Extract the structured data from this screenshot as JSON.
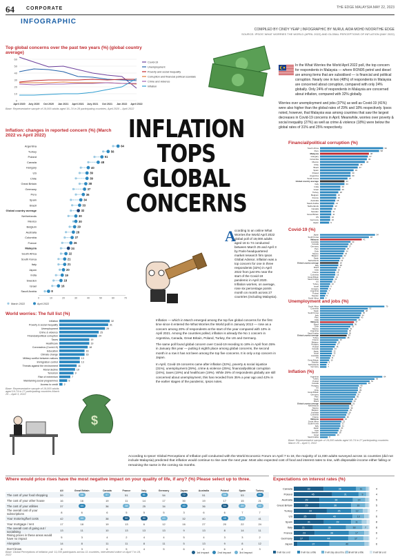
{
  "header": {
    "page": "64",
    "section": "CORPORATE",
    "kicker": "INFOGRAPHIC",
    "publication": "THE EDGE MALAYSIA MAY 22, 2023",
    "credit": "COMPILED BY CINDY YEAP | INFOGRAPHIC BY NURUL AIDA MOHD NOOR/THE EDGE",
    "source": "SOURCE: IPSOS' WHAT WORRIES THE WORLD (APRIL 2022) AND GLOBAL PERCEPTIONS OF INFLATION (MAY 2022)"
  },
  "headline": {
    "line1": "INFLATION",
    "line2": "TOPS GLOBAL",
    "line3": "CONCERNS"
  },
  "intro": {
    "text": "In the What Worries the World April 2022 poll, the top concern for respondents in Malaysia — where RON95 petrol and diesel are among items that are subsidised — is financial and political corruption. Nearly one in two (48%) of respondents in Malaysia are concerned about corruption, compared with only 24% globally. Only 24% of respondents in Malaysia are concerned about inflation, compared with 32% globally.",
    "text2": "Worries over unemployment and jobs (37%) as well as Covid-19 (41%) were also higher than the global rates of 29% and 18% respectively. Ipsos noted, however, that Malaysia was among countries that saw the largest decreases in Covid-19 concerns in April. Meanwhile, worries over poverty & social inequality (27%) as well as crime & violence (18%) were below the global rates of 31% and 25% respectively."
  },
  "article": {
    "drop_letter": "A",
    "p1": "ccording to an online What Worries the World April 2022 global poll of 19,000 adults aged 16 to 74 conducted between March 25 and April 3 by Paris-headquartered market research firm Ipsos Global Advisor, inflation was a top concern for one in three respondents (32%) in April 2022 from just 8% near the start of the Covid-19 pandemic in April 2020. Inflation worries, on average, rose six percentage points month on month across 27 countries (including Malaysia).",
    "p2": "Inflation — which in March emerged among the top five global concerns for the first time since it entered the What Worries the World poll in January 2013 — rose as a concern among 20% of respondents at the start of the year compared with 10% in April 2021. Among the countries polled, inflation is already the No 1 concern in Argentina, Canada, Great Britain, Poland, Turkey, the US and Germany.",
    "p3": "The same poll found global concern over Covid-19 receding to 18% in April from 35% in January this year — putting it eighth place among global concerns, the second month in a row it has not been among the top five concerns. It is only a top concern in Japan.",
    "p4": "In April, Covid-19 concerns came after inflation (32%), poverty & social injustice (31%), unemployment (29%), crime & violence (25%), financial/political corruption (24%), taxes (19%) and healthcare (19%). While 29% of respondents globally are still concerned about unemployment, this has receded from 35% a year ago and 42% in the earlier stages of the pandemic, Ipsos notes."
  },
  "bottom_intro": {
    "text": "According to Ipsos' Global Perceptions of Inflation poll conducted with the World Economic Forum on April 7 to 18, the majority of 11,030 adults surveyed across 11 countries (did not include Malaysia) predicted that inflation would continue to rise over the next year. Most also expected cost of food and interest rates to rise, with disposable income either falling or remaining the same in the coming six months."
  },
  "line_chart": {
    "title": "Top global concerns over the past two years (%) (global country average)",
    "note": "Base: Representative sample of 19,000 adults aged 16–74 in 28 participating countries, April 2020 – April 2022",
    "chart_data": {
      "type": "line",
      "x": [
        "April 2020",
        "July 2020",
        "Oct 2020",
        "Jan 2021",
        "April 2021",
        "July 2021",
        "Oct 2021",
        "Jan 2022",
        "April 2022"
      ],
      "ylim": [
        0,
        60
      ],
      "yticks": [
        0,
        10,
        20,
        30,
        40,
        50,
        60
      ],
      "series": [
        {
          "name": "Covid-19",
          "color": "#6a3d9a",
          "values": [
            63,
            56,
            49,
            50,
            45,
            40,
            37,
            35,
            18
          ]
        },
        {
          "name": "Unemployment",
          "color": "#1f5fa8",
          "values": [
            42,
            46,
            45,
            42,
            35,
            34,
            31,
            30,
            29
          ]
        },
        {
          "name": "Poverty and social inequality",
          "color": "#c0282d",
          "values": [
            27,
            29,
            30,
            30,
            30,
            31,
            30,
            31,
            31
          ]
        },
        {
          "name": "Corruption and financial political scandals",
          "color": "#e07b39",
          "values": [
            26,
            26,
            26,
            27,
            26,
            26,
            26,
            25,
            24
          ]
        },
        {
          "name": "Crime and violence",
          "color": "#a05fb0",
          "values": [
            24,
            23,
            24,
            24,
            25,
            25,
            26,
            25,
            25
          ]
        },
        {
          "name": "Inflation",
          "color": "#2b9bcf",
          "values": [
            8,
            8,
            9,
            10,
            10,
            12,
            16,
            20,
            32
          ]
        }
      ]
    }
  },
  "inflation_change": {
    "title": "Inflation: changes in reported concern (%) (March 2022 vs April 2022)",
    "legend": [
      "March 2022",
      "April 2022"
    ],
    "chart_data": {
      "type": "dumbbell",
      "xlim": [
        0,
        70
      ],
      "xticks": [
        0,
        10,
        20,
        30,
        40,
        50,
        60,
        70
      ],
      "categories": [
        "Argentina",
        "Turkey",
        "Poland",
        "Canada",
        "Hungary",
        "US",
        "Chile",
        "Great Britain",
        "Germany",
        "Peru",
        "Spain",
        "Brazil",
        "Global country average",
        "Netherlands",
        "Mexico",
        "Belgium",
        "Australia",
        "Columbia",
        "France",
        "Malaysia",
        "South Africa",
        "South Korea",
        "Italy",
        "Japan",
        "India",
        "Sweden",
        "Israel",
        "Saudi Arabia"
      ],
      "march": [
        60,
        52,
        45,
        40,
        34,
        33,
        30,
        33,
        28,
        30,
        26,
        27,
        26,
        24,
        28,
        25,
        22,
        21,
        19,
        18,
        18,
        16,
        16,
        17,
        14,
        12,
        11,
        5
      ],
      "april": [
        64,
        56,
        51,
        48,
        40,
        39,
        39,
        38,
        37,
        36,
        34,
        33,
        32,
        30,
        30,
        29,
        28,
        27,
        26,
        24,
        22,
        21,
        21,
        20,
        19,
        18,
        16,
        8
      ]
    }
  },
  "world_worries": {
    "title": "World worries: The full list (%)",
    "note": "Base: Representative sample of 19,000 adults aged 16-74 in 27 participating countries March 25 – April 3, 2022",
    "chart_data": {
      "type": "bar",
      "categories": [
        "Inflation",
        "Poverty & social inequality",
        "Unemployment",
        "Crime & violence",
        "Financial/political corruption",
        "Taxes",
        "Healthcare",
        "Coronavirus (Covid-19)",
        "Education",
        "Climate change",
        "Military conflict between nations",
        "Immigration control",
        "Threats against the environment",
        "Moral decline",
        "Terrorism",
        "Rise of extremism",
        "Maintaining social programmes",
        "Access to credit"
      ],
      "values": [
        32,
        31,
        29,
        25,
        24,
        19,
        19,
        18,
        16,
        16,
        13,
        13,
        11,
        10,
        9,
        7,
        5,
        2
      ]
    }
  },
  "corruption": {
    "title": "Financial/political corruption (%)",
    "chart_data": {
      "type": "bar",
      "categories": [
        "South Africa",
        "Peru",
        "Malaysia",
        "Hungary",
        "Columbia",
        "Mexico",
        "Chile",
        "Brazil",
        "Spain",
        "Poland",
        "Argentina",
        "South Korea",
        "Global country average",
        "Italy",
        "India",
        "Israel",
        "Turkey",
        "Belgium",
        "France",
        "Australia",
        "Saudi Arabia",
        "Netherlands",
        "Canada",
        "Sweden",
        "Great Britain",
        "US",
        "Germany",
        "Japan"
      ],
      "values": [
        62,
        58,
        48,
        47,
        46,
        44,
        38,
        37,
        33,
        30,
        30,
        27,
        24,
        24,
        20,
        20,
        18,
        16,
        16,
        15,
        14,
        13,
        12,
        11,
        11,
        10,
        10,
        9
      ]
    }
  },
  "covid": {
    "title": "Covid-19 (%)",
    "chart_data": {
      "type": "bar",
      "categories": [
        "Japan",
        "South Korea",
        "Malaysia",
        "Australia",
        "Canada",
        "Germany",
        "Peru",
        "Chile",
        "Mexico",
        "Belgium",
        "Spain",
        "Netherlands",
        "Global country average",
        "Italy",
        "Brazil",
        "India",
        "France",
        "Columbia",
        "Great Britain",
        "Saudi Arabia",
        "US",
        "Turkey",
        "Israel",
        "Hungary",
        "Argentina",
        "Poland",
        "Sweden",
        "South Africa"
      ],
      "values": [
        54,
        48,
        41,
        30,
        28,
        27,
        25,
        24,
        23,
        22,
        20,
        19,
        18,
        18,
        17,
        16,
        15,
        15,
        14,
        13,
        12,
        10,
        9,
        8,
        7,
        6,
        5,
        4
      ]
    }
  },
  "unemployment": {
    "title": "Unemployment and jobs (%)",
    "chart_data": {
      "type": "bar",
      "categories": [
        "South Africa",
        "Columbia",
        "Spain",
        "South Korea",
        "Italy",
        "Peru",
        "India",
        "Malaysia",
        "Brazil",
        "Chile",
        "Mexico",
        "Argentina",
        "Saudi Arabia",
        "Global country average",
        "Turkey",
        "France",
        "Belgium",
        "Hungary",
        "Poland",
        "Canada",
        "Japan",
        "Israel",
        "Australia",
        "US",
        "Great Britain",
        "Sweden",
        "Netherlands",
        "Germany"
      ],
      "values": [
        70,
        52,
        48,
        45,
        44,
        43,
        40,
        37,
        36,
        33,
        31,
        30,
        30,
        29,
        28,
        20,
        18,
        17,
        16,
        14,
        13,
        13,
        12,
        11,
        10,
        8,
        7,
        7
      ]
    }
  },
  "inflation_country": {
    "title": "Inflation (%)",
    "note": "Base: Representative sample of 19,000 adults aged 16-74 in 27 participating countries March 25 – April 3, 2022",
    "chart_data": {
      "type": "bar",
      "categories": [
        "Argentina",
        "Turkey",
        "Poland",
        "Canada",
        "Hungary",
        "US",
        "Chile",
        "Great Britain",
        "Germany",
        "Peru",
        "Spain",
        "Brazil",
        "Global country average",
        "Netherlands",
        "Mexico",
        "Belgium",
        "Australia",
        "Columbia",
        "France",
        "Malaysia",
        "South Africa",
        "South Korea",
        "Italy",
        "Japan",
        "India",
        "Sweden",
        "Israel",
        "Saudi Arabia"
      ],
      "values": [
        64,
        56,
        51,
        48,
        40,
        39,
        39,
        38,
        37,
        36,
        34,
        33,
        32,
        30,
        30,
        29,
        28,
        27,
        26,
        24,
        22,
        21,
        21,
        20,
        19,
        18,
        16,
        8
      ]
    }
  },
  "price_impact": {
    "title": "Where would price rises have the most negative impact on your quality of life, if any? (%) Please select up to three.",
    "columns": [
      "All",
      "Great Britain",
      "Canada",
      "France",
      "Italy",
      "Germany",
      "Japan",
      "Australia",
      "Poland",
      "Spain",
      "Turkey"
    ],
    "rows": [
      {
        "label": "The cost of your food shopping",
        "values": [
          59,
          58,
          57,
          51,
          61,
          54,
          72,
          51,
          58,
          53,
          59
        ]
      },
      {
        "label": "The cost of your other house",
        "values": [
          16,
          16,
          19,
          11,
          14,
          17,
          30,
          19,
          17,
          15,
          21
        ]
      },
      {
        "label": "The cost of your utilities",
        "values": [
          37,
          44,
          36,
          38,
          25,
          34,
          43,
          36,
          54,
          39,
          42
        ]
      },
      {
        "label": "The overall cost of your subscriptions",
        "values": [
          8,
          6,
          6,
          5,
          5,
          5,
          3,
          6,
          6,
          7,
          7
        ]
      },
      {
        "label": "Your motoring/fuel costs",
        "values": [
          42,
          44,
          38,
          50,
          50,
          43,
          32,
          40,
          45,
          43,
          41
        ]
      },
      {
        "label": "Your mortgage / rent",
        "values": [
          17,
          18,
          19,
          13,
          6,
          12,
          16,
          27,
          20,
          22,
          24
        ]
      },
      {
        "label": "The overall cost of going out / socialising",
        "values": [
          13,
          11,
          10,
          13,
          13,
          13,
          9,
          13,
          8,
          14,
          11
        ]
      },
      {
        "label": "Rising prices in these areas would have no impact",
        "values": [
          5,
          3,
          4,
          2,
          4,
          4,
          5,
          4,
          3,
          3,
          2
        ]
      },
      {
        "label": "Alongside",
        "values": [
          14,
          8,
          11,
          11,
          8,
          11,
          5,
          13,
          9,
          8,
          12
        ]
      },
      {
        "label": "Don't know",
        "values": [
          6,
          3,
          6,
          5,
          4,
          5,
          6,
          4,
          6,
          4,
          3
        ]
      }
    ],
    "legend": [
      "1st impact",
      "2nd impact",
      "3rd impact"
    ],
    "note": "Base: Global Perceptions of Inflation poll: 11,030 participants across 11 countries, interviewed online on April 7 to 18, 2022"
  },
  "interest_rates": {
    "title": "Expectations on interest rates (%)",
    "legend": [
      "It will rise a lot",
      "It will rise a little",
      "It will stay about the same",
      "It will fall a little",
      "It will fall a lot"
    ],
    "colors": [
      "#1d5e8a",
      "#2f85b6",
      "#6fb2d4",
      "#a9cfe3",
      "#d8e8f1"
    ],
    "chart_data": {
      "type": "stacked-bar",
      "categories": [
        "Canada",
        "Poland",
        "Australia",
        "Great Britain",
        "Turkey",
        "US",
        "Spain",
        "Italy",
        "France",
        "Germany",
        "Japan"
      ],
      "series": [
        {
          "name": "It will rise a lot",
          "values": [
            33,
            45,
            29,
            29,
            34,
            25,
            31,
            21,
            23,
            17,
            4
          ]
        },
        {
          "name": "It will rise a little",
          "values": [
            36,
            31,
            38,
            36,
            25,
            40,
            28,
            36,
            38,
            44,
            37
          ]
        },
        {
          "name": "It will stay about the same",
          "values": [
            11,
            9,
            14,
            16,
            12,
            13,
            11,
            18,
            17,
            17,
            40
          ]
        },
        {
          "name": "It will fall a little",
          "values": [
            3,
            3,
            4,
            4,
            5,
            5,
            5,
            7,
            5,
            6,
            5
          ]
        },
        {
          "name": "It will fall a lot",
          "values": [
            1,
            1,
            1,
            1,
            2,
            1,
            3,
            1,
            1,
            1,
            1
          ]
        }
      ]
    }
  }
}
